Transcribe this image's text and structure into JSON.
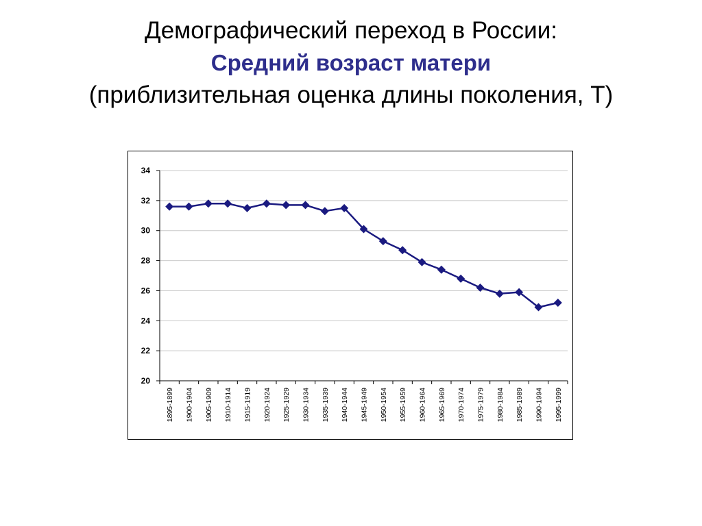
{
  "header": {
    "title_line1": "Демографический переход в России:",
    "title_line2": "Средний возраст матери",
    "title_line3": "(приблизительная оценка длины поколения, T)"
  },
  "colors": {
    "accent": "#2e2e8c",
    "series": "#1a1a80",
    "grid": "#c8c8c8"
  },
  "chart_data": {
    "type": "line",
    "title": "",
    "xlabel": "",
    "ylabel": "",
    "ylim": [
      20,
      34
    ],
    "yticks": [
      20,
      22,
      24,
      26,
      28,
      30,
      32,
      34
    ],
    "grid": true,
    "legend": "none",
    "marker": "diamond",
    "categories": [
      "1895-1899",
      "1900-1904",
      "1905-1909",
      "1910-1914",
      "1915-1919",
      "1920-1924",
      "1925-1929",
      "1930-1934",
      "1935-1939",
      "1940-1944",
      "1945-1949",
      "1950-1954",
      "1955-1959",
      "1960-1964",
      "1965-1969",
      "1970-1974",
      "1975-1979",
      "1980-1984",
      "1985-1989",
      "1990-1994",
      "1995-1999"
    ],
    "series": [
      {
        "values": [
          31.6,
          31.6,
          31.8,
          31.8,
          31.5,
          31.8,
          31.7,
          31.7,
          31.3,
          31.5,
          30.1,
          29.3,
          28.7,
          27.9,
          27.4,
          26.8,
          26.2,
          25.8,
          25.9,
          24.9,
          25.2
        ]
      }
    ]
  }
}
